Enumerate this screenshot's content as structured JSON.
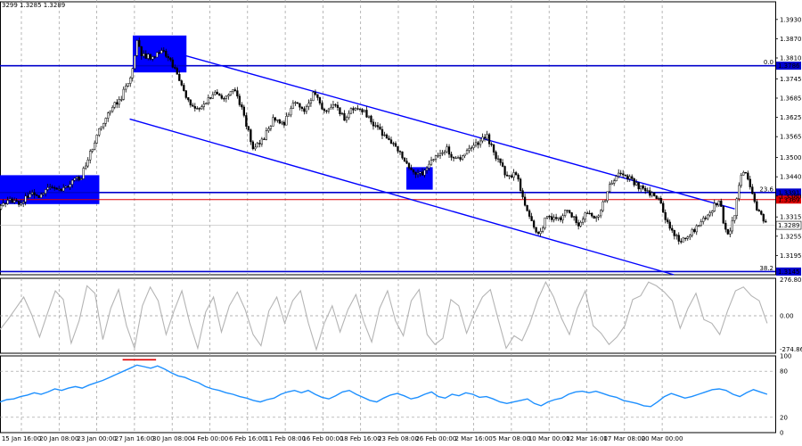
{
  "header": {
    "ohlc_text": "3299 1.3285 1.3289"
  },
  "colors": {
    "background": "#ffffff",
    "candles": "#000000",
    "hline": "#0000cc",
    "channel": "#0000ff",
    "box": "#0000ff",
    "price_marker": "#e00000",
    "current_price_bg": "#ffffff",
    "cci": "#b4b4b4",
    "rsi": "#1e90ff",
    "rsi_overbought_mark": "#e00000",
    "grid": "#9a9a9a"
  },
  "chart_data": [
    {
      "type": "candlestick",
      "name": "price",
      "y_ticks": [
        1.393,
        1.387,
        1.381,
        1.3745,
        1.3685,
        1.3625,
        1.3565,
        1.35,
        1.344,
        1.338,
        1.3315,
        1.3255,
        1.3195
      ],
      "y_tick_labels": [
        "1.3930",
        "1.3870",
        "1.3810",
        "1.3745",
        "1.3685",
        "1.3625",
        "1.3565",
        "1.3500",
        "1.3440",
        "1.3380",
        "1.3315",
        "1.3255",
        "1.3195"
      ],
      "ylim": [
        1.3135,
        1.3985
      ],
      "x_labels": [
        "15 Jan 16:00",
        "20 Jan 08:00",
        "23 Jan 00:00",
        "27 Jan 16:00",
        "30 Jan 08:00",
        "4 Feb 00:00",
        "6 Feb 16:00",
        "11 Feb 08:00",
        "16 Feb 00:00",
        "18 Feb 16:00",
        "23 Feb 08:00",
        "26 Feb 00:00",
        "2 Mar 16:00",
        "5 Mar 08:00",
        "10 Mar 00:00",
        "12 Mar 16:00",
        "17 Mar 08:00",
        "20 Mar 00:00"
      ],
      "x_label_prefix": "",
      "close_path": [
        [
          0,
          1.334
        ],
        [
          10,
          1.337
        ],
        [
          20,
          1.335
        ],
        [
          30,
          1.3395
        ],
        [
          40,
          1.338
        ],
        [
          50,
          1.341
        ],
        [
          60,
          1.3395
        ],
        [
          70,
          1.342
        ],
        [
          80,
          1.344
        ],
        [
          90,
          1.352
        ],
        [
          100,
          1.36
        ],
        [
          110,
          1.365
        ],
        [
          120,
          1.369
        ],
        [
          130,
          1.376
        ],
        [
          135,
          1.387
        ],
        [
          140,
          1.382
        ],
        [
          150,
          1.381
        ],
        [
          160,
          1.383
        ],
        [
          170,
          1.379
        ],
        [
          180,
          1.372
        ],
        [
          190,
          1.365
        ],
        [
          200,
          1.366
        ],
        [
          210,
          1.37
        ],
        [
          220,
          1.368
        ],
        [
          230,
          1.372
        ],
        [
          240,
          1.364
        ],
        [
          250,
          1.352
        ],
        [
          260,
          1.356
        ],
        [
          270,
          1.362
        ],
        [
          280,
          1.36
        ],
        [
          290,
          1.368
        ],
        [
          300,
          1.365
        ],
        [
          310,
          1.37
        ],
        [
          320,
          1.364
        ],
        [
          330,
          1.367
        ],
        [
          340,
          1.362
        ],
        [
          350,
          1.366
        ],
        [
          360,
          1.364
        ],
        [
          370,
          1.36
        ],
        [
          380,
          1.356
        ],
        [
          390,
          1.354
        ],
        [
          400,
          1.348
        ],
        [
          410,
          1.344
        ],
        [
          420,
          1.346
        ],
        [
          430,
          1.35
        ],
        [
          440,
          1.353
        ],
        [
          450,
          1.349
        ],
        [
          460,
          1.352
        ],
        [
          470,
          1.354
        ],
        [
          480,
          1.357
        ],
        [
          490,
          1.35
        ],
        [
          500,
          1.344
        ],
        [
          510,
          1.345
        ],
        [
          515,
          1.338
        ],
        [
          520,
          1.334
        ],
        [
          525,
          1.33
        ],
        [
          530,
          1.325
        ],
        [
          540,
          1.332
        ],
        [
          550,
          1.33
        ],
        [
          560,
          1.334
        ],
        [
          570,
          1.329
        ],
        [
          580,
          1.333
        ],
        [
          590,
          1.331
        ],
        [
          600,
          1.34
        ],
        [
          610,
          1.345
        ],
        [
          620,
          1.344
        ],
        [
          630,
          1.341
        ],
        [
          640,
          1.339
        ],
        [
          650,
          1.337
        ],
        [
          655,
          1.333
        ],
        [
          660,
          1.328
        ],
        [
          670,
          1.324
        ],
        [
          680,
          1.326
        ],
        [
          690,
          1.329
        ],
        [
          700,
          1.333
        ],
        [
          710,
          1.337
        ],
        [
          715,
          1.328
        ],
        [
          720,
          1.326
        ],
        [
          725,
          1.333
        ],
        [
          730,
          1.343
        ],
        [
          735,
          1.346
        ],
        [
          740,
          1.341
        ],
        [
          745,
          1.335
        ],
        [
          750,
          1.333
        ],
        [
          755,
          1.33
        ],
        [
          757,
          1.3289
        ]
      ],
      "horizontal_levels": [
        {
          "value": 1.3786,
          "label": "1.3786",
          "fib_label": "0.0"
        },
        {
          "value": 1.3391,
          "label": "1.3391",
          "fib_label": "23.6"
        },
        {
          "value": 1.3145,
          "label": "1.3145",
          "fib_label": "38.2"
        }
      ],
      "price_marker": {
        "value": 1.3369,
        "label": "1.3369"
      },
      "current_price": {
        "value": 1.3289,
        "label": "1.3289"
      },
      "channel_lines": [
        {
          "from": [
            180,
            1.382
          ],
          "to": [
            725,
            1.334
          ]
        },
        {
          "from": [
            128,
            1.362
          ],
          "to": [
            665,
            1.3135
          ]
        }
      ],
      "highlight_boxes": [
        {
          "x0": 0,
          "x1": 98,
          "y_top": 1.3445,
          "y_bottom": 1.3355
        },
        {
          "x0": 131,
          "x1": 184,
          "y_top": 1.388,
          "y_bottom": 1.3765
        },
        {
          "x0": 401,
          "x1": 427,
          "y_top": 1.347,
          "y_bottom": 1.34
        }
      ]
    },
    {
      "type": "line",
      "name": "cci",
      "y_tick_labels": [
        "276.8074",
        "0.00",
        "-274.865"
      ],
      "ylim": [
        -300,
        300
      ],
      "zero_line": 0,
      "values": [
        -110,
        -30,
        60,
        150,
        10,
        -170,
        20,
        200,
        130,
        -220,
        -40,
        240,
        180,
        -190,
        60,
        210,
        -80,
        -260,
        80,
        230,
        120,
        -150,
        40,
        200,
        -60,
        -260,
        30,
        150,
        -130,
        80,
        190,
        50,
        -150,
        -240,
        40,
        150,
        -60,
        120,
        200,
        -60,
        -270,
        -60,
        80,
        -130,
        50,
        170,
        -50,
        -210,
        60,
        200,
        -40,
        -160,
        120,
        210,
        -150,
        -230,
        -180,
        130,
        80,
        -140,
        20,
        150,
        210,
        -30,
        -260,
        -160,
        -200,
        -60,
        130,
        270,
        150,
        -20,
        -150,
        60,
        200,
        -80,
        -140,
        -230,
        -170,
        -80,
        130,
        160,
        270,
        240,
        190,
        120,
        -100,
        60,
        180,
        -30,
        -60,
        -150,
        40,
        200,
        230,
        160,
        120,
        -60
      ]
    },
    {
      "type": "line",
      "name": "rsi",
      "y_tick_labels": [
        "100",
        "80",
        "20",
        "0"
      ],
      "ylim": [
        0,
        100
      ],
      "levels": [
        80,
        20
      ],
      "overbought_mark": {
        "x0": 121,
        "x1": 154,
        "value": 95
      },
      "values": [
        40,
        43,
        44,
        47,
        49,
        52,
        50,
        53,
        57,
        55,
        58,
        60,
        58,
        62,
        65,
        68,
        72,
        76,
        80,
        84,
        88,
        86,
        84,
        87,
        83,
        78,
        74,
        72,
        68,
        65,
        60,
        57,
        55,
        52,
        50,
        47,
        45,
        42,
        40,
        43,
        45,
        50,
        53,
        55,
        52,
        55,
        50,
        46,
        44,
        48,
        53,
        55,
        50,
        46,
        42,
        40,
        45,
        49,
        51,
        48,
        44,
        46,
        50,
        53,
        47,
        45,
        50,
        48,
        52,
        50,
        46,
        47,
        44,
        40,
        38,
        40,
        42,
        44,
        38,
        35,
        40,
        43,
        45,
        50,
        53,
        54,
        52,
        54,
        51,
        48,
        46,
        42,
        40,
        38,
        35,
        34,
        40,
        47,
        51,
        48,
        45,
        47,
        50,
        53,
        56,
        57,
        55,
        50,
        47,
        52,
        56,
        53,
        50
      ]
    }
  ]
}
